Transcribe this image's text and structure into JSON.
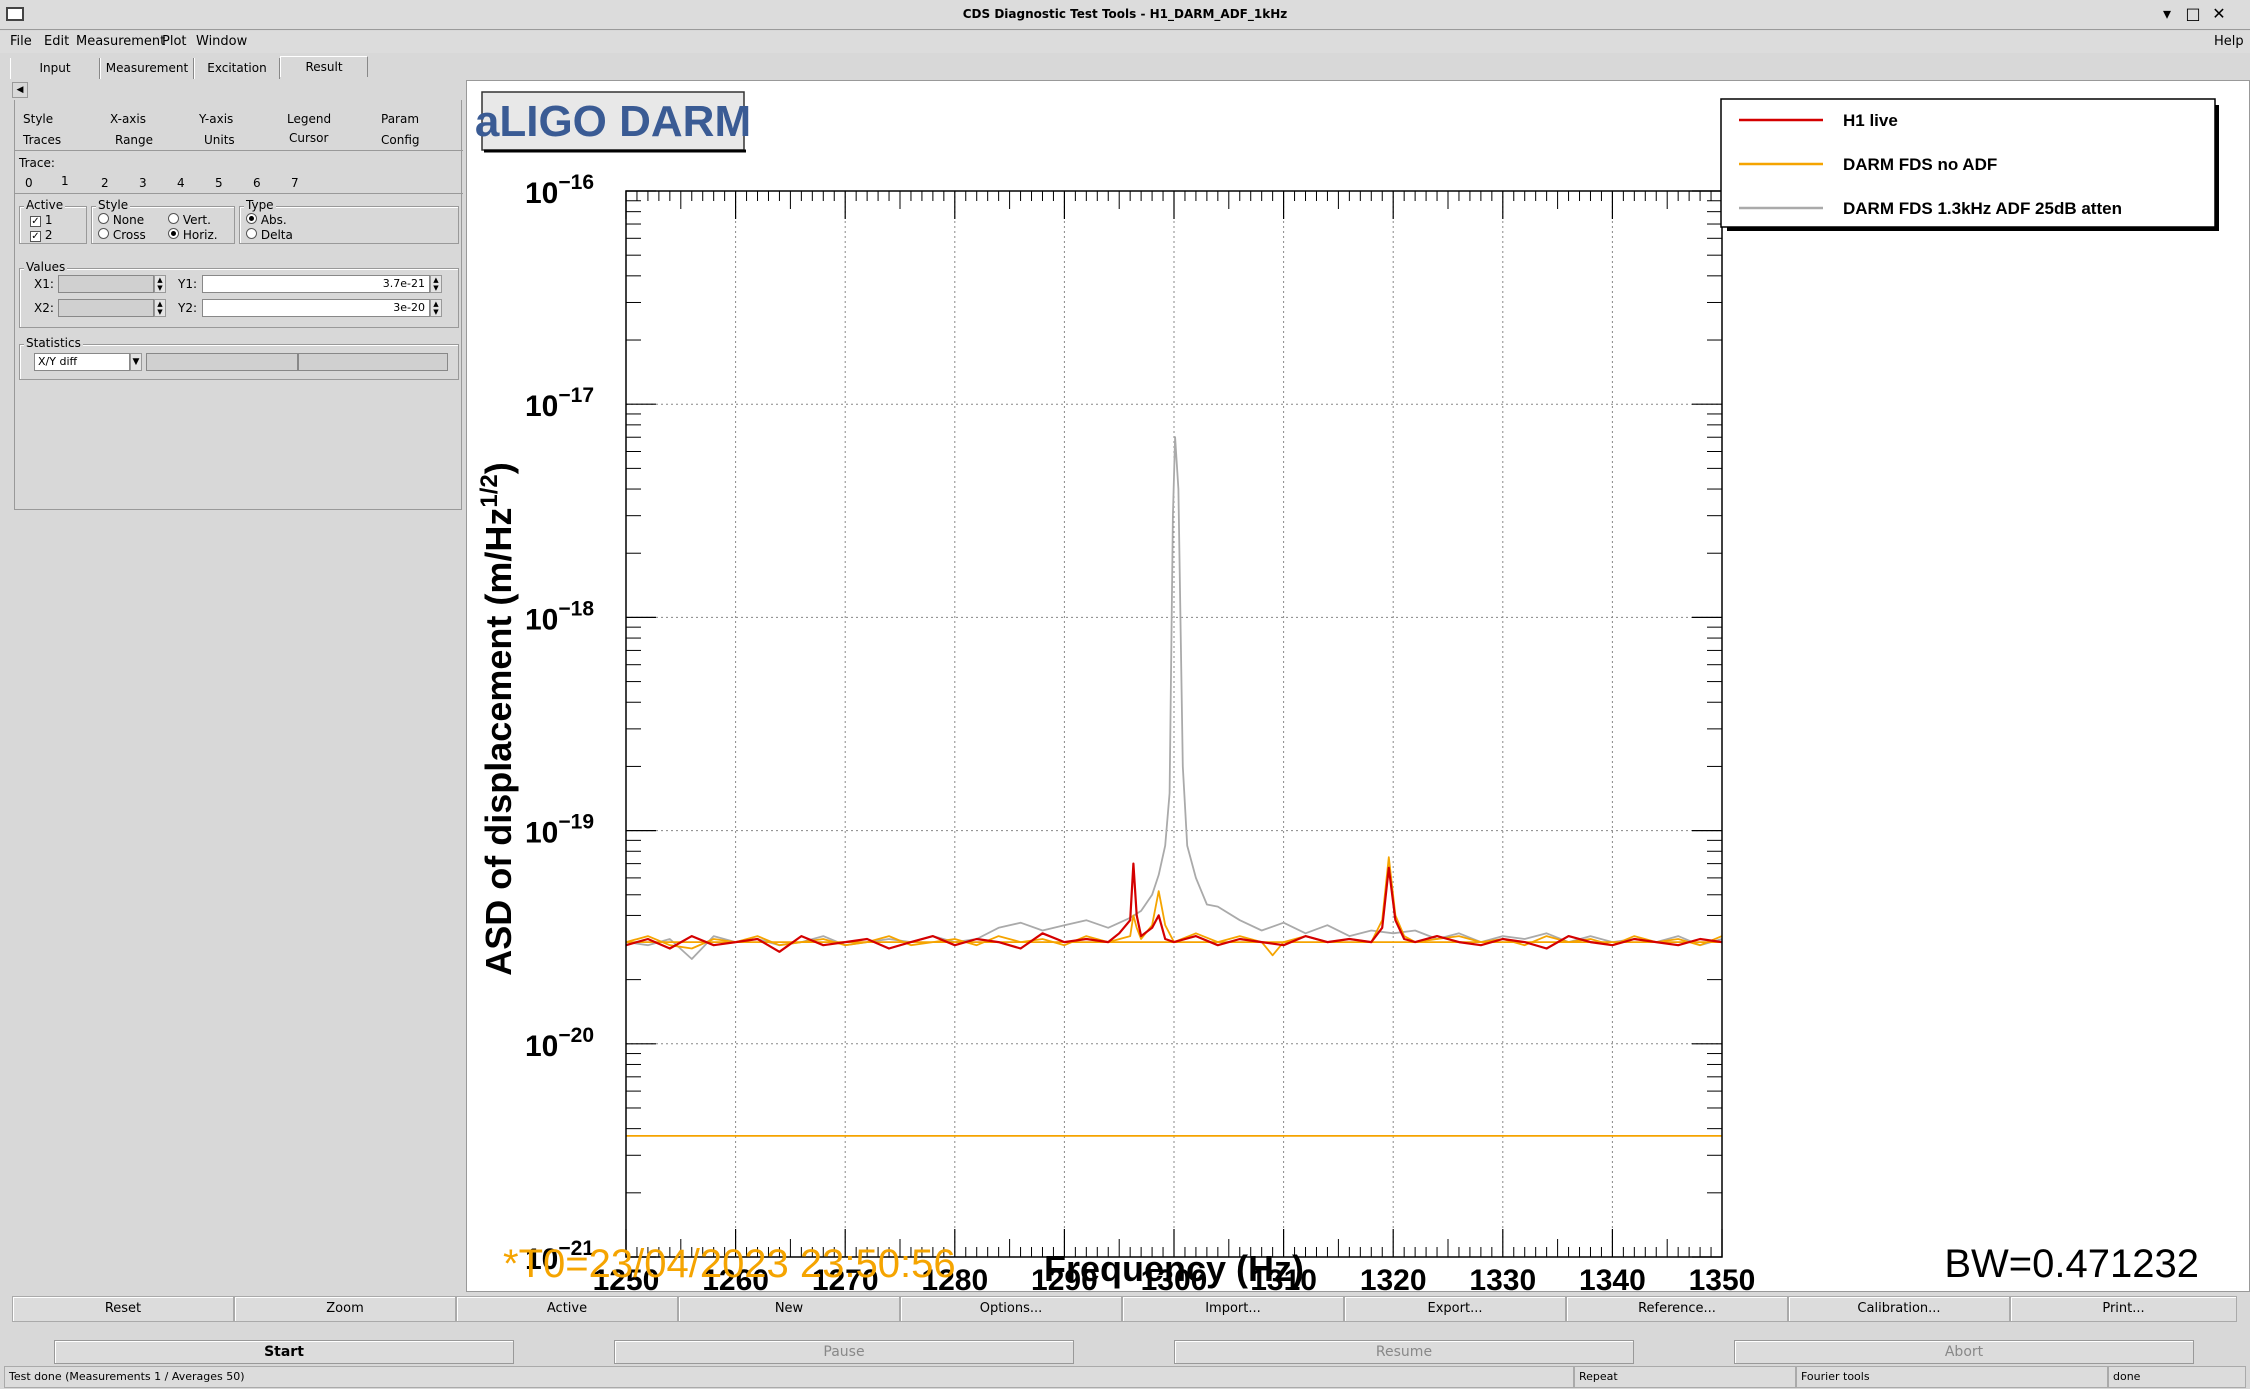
{
  "window": {
    "title": "CDS Diagnostic Test Tools - H1_DARM_ADF_1kHz",
    "min": "▾",
    "restore": "□",
    "close": "✕"
  },
  "menu": {
    "file": "File",
    "edit": "Edit",
    "measurement": "Measurement",
    "plot": "Plot",
    "window": "Window",
    "help": "Help"
  },
  "tabs": [
    "Input",
    "Measurement",
    "Excitation",
    "Result"
  ],
  "subtabs": {
    "row1": [
      "Style",
      "X-axis",
      "Y-axis",
      "Legend",
      "Param"
    ],
    "row2": [
      "Traces",
      "Range",
      "Units",
      "Cursor",
      "Config"
    ]
  },
  "trace": {
    "label": "Trace:",
    "items": [
      "0",
      "1",
      "2",
      "3",
      "4",
      "5",
      "6",
      "7"
    ]
  },
  "active": {
    "label": "Active",
    "items": [
      "1",
      "2"
    ]
  },
  "style": {
    "label": "Style",
    "none": "None",
    "vert": "Vert.",
    "cross": "Cross",
    "horiz": "Horiz."
  },
  "type": {
    "label": "Type",
    "abs": "Abs.",
    "delta": "Delta"
  },
  "values": {
    "label": "Values",
    "x1_label": "X1:",
    "x2_label": "X2:",
    "y1_label": "Y1:",
    "y2_label": "Y2:",
    "y1": "3.7e-21",
    "y2": "3e-20"
  },
  "statistics": {
    "label": "Statistics",
    "selected": "X/Y diff"
  },
  "plot_title": "aLIGO DARM",
  "t0": "*T0=23/04/2023 23:50:56",
  "bw": "BW=0.471232",
  "colors": {
    "red": "#d40000",
    "orange": "#f5a400",
    "gray": "#aaaaaa",
    "title": "#3a5b94"
  },
  "chart_data": {
    "type": "line",
    "xlabel": "Frequency (Hz)",
    "ylabel": "ASD of displacement (m/Hz",
    "ylabel_sup": "1/2",
    "ylabel_end": ")",
    "log_y": true,
    "grid": true,
    "xlim": [
      1250,
      1350
    ],
    "ylim": [
      1e-21,
      1e-16
    ],
    "x_ticks": [
      "1250",
      "1260",
      "1270",
      "1280",
      "1290",
      "1300",
      "1310",
      "1320",
      "1330",
      "1340",
      "1350"
    ],
    "y_ticks": [
      {
        "base": "10",
        "exp": "−21"
      },
      {
        "base": "10",
        "exp": "−20"
      },
      {
        "base": "10",
        "exp": "−19"
      },
      {
        "base": "10",
        "exp": "−18"
      },
      {
        "base": "10",
        "exp": "−17"
      },
      {
        "base": "10",
        "exp": "−16"
      }
    ],
    "legend_position": "top-right",
    "series": [
      {
        "name": "H1 live",
        "color": "#d40000",
        "x": [
          1250,
          1252,
          1254,
          1256,
          1258,
          1260,
          1262,
          1264,
          1266,
          1268,
          1270,
          1272,
          1274,
          1276,
          1278,
          1280,
          1282,
          1284,
          1286,
          1288,
          1290,
          1292,
          1294,
          1295,
          1296,
          1296.3,
          1296.6,
          1297,
          1298,
          1298.6,
          1299.2,
          1300,
          1302,
          1304,
          1306,
          1308,
          1310,
          1312,
          1314,
          1316,
          1318,
          1319,
          1319.6,
          1320.2,
          1321,
          1322,
          1324,
          1326,
          1328,
          1330,
          1332,
          1334,
          1336,
          1338,
          1340,
          1342,
          1344,
          1346,
          1348,
          1350
        ],
        "y": [
          2.9e-20,
          3.1e-20,
          2.8e-20,
          3.2e-20,
          2.9e-20,
          3e-20,
          3.1e-20,
          2.7e-20,
          3.2e-20,
          2.9e-20,
          3e-20,
          3.1e-20,
          2.8e-20,
          3e-20,
          3.2e-20,
          2.9e-20,
          3.1e-20,
          3e-20,
          2.8e-20,
          3.3e-20,
          3e-20,
          3.1e-20,
          3e-20,
          3.3e-20,
          3.8e-20,
          7e-20,
          4e-20,
          3.2e-20,
          3.5e-20,
          4e-20,
          3.1e-20,
          3e-20,
          3.2e-20,
          2.9e-20,
          3.1e-20,
          3e-20,
          2.9e-20,
          3.2e-20,
          3e-20,
          3.1e-20,
          3e-20,
          3.5e-20,
          6.7e-20,
          3.8e-20,
          3.1e-20,
          3e-20,
          3.2e-20,
          3e-20,
          2.9e-20,
          3.1e-20,
          3e-20,
          2.8e-20,
          3.2e-20,
          3e-20,
          2.9e-20,
          3.1e-20,
          3e-20,
          2.9e-20,
          3.1e-20,
          3e-20
        ]
      },
      {
        "name": "DARM FDS no ADF",
        "color": "#f5a400",
        "x": [
          1250,
          1252,
          1254,
          1256,
          1258,
          1260,
          1262,
          1264,
          1266,
          1268,
          1270,
          1272,
          1274,
          1276,
          1278,
          1280,
          1282,
          1284,
          1286,
          1288,
          1290,
          1292,
          1294,
          1296,
          1296.3,
          1296.6,
          1297,
          1298,
          1298.6,
          1299.2,
          1300,
          1302,
          1304,
          1306,
          1308,
          1309,
          1310,
          1312,
          1314,
          1316,
          1318,
          1319,
          1319.6,
          1320.2,
          1321,
          1322,
          1324,
          1326,
          1328,
          1330,
          1332,
          1334,
          1336,
          1338,
          1340,
          1342,
          1344,
          1346,
          1348,
          1350
        ],
        "y": [
          3e-20,
          3.2e-20,
          2.9e-20,
          2.8e-20,
          3.1e-20,
          3e-20,
          3.2e-20,
          2.9e-20,
          3e-20,
          3.1e-20,
          2.9e-20,
          3e-20,
          3.2e-20,
          2.9e-20,
          3e-20,
          3.1e-20,
          2.9e-20,
          3.2e-20,
          3e-20,
          3.1e-20,
          2.9e-20,
          3.2e-20,
          3e-20,
          3.2e-20,
          4e-20,
          3.5e-20,
          3.1e-20,
          3.6e-20,
          5.2e-20,
          3.6e-20,
          3e-20,
          3.3e-20,
          3e-20,
          3.2e-20,
          3e-20,
          2.6e-20,
          3e-20,
          3.2e-20,
          3e-20,
          3.1e-20,
          3e-20,
          3.8e-20,
          7.5e-20,
          4e-20,
          3.2e-20,
          3e-20,
          3.1e-20,
          3.2e-20,
          3e-20,
          3.1e-20,
          2.9e-20,
          3.2e-20,
          3e-20,
          3.1e-20,
          2.9e-20,
          3.2e-20,
          3e-20,
          3.1e-20,
          2.9e-20,
          3.2e-20
        ]
      },
      {
        "name": "DARM FDS 1.3kHz ADF 25dB atten",
        "color": "#aaaaaa",
        "x": [
          1250,
          1252,
          1254,
          1256,
          1258,
          1260,
          1262,
          1264,
          1266,
          1268,
          1270,
          1272,
          1274,
          1276,
          1278,
          1280,
          1282,
          1284,
          1286,
          1288,
          1290,
          1292,
          1294,
          1296,
          1297,
          1298,
          1298.6,
          1299.2,
          1299.6,
          1299.9,
          1300.1,
          1300.4,
          1300.8,
          1301.2,
          1302,
          1303,
          1304,
          1306,
          1308,
          1310,
          1312,
          1314,
          1316,
          1318,
          1320,
          1322,
          1324,
          1326,
          1328,
          1330,
          1332,
          1334,
          1336,
          1338,
          1340,
          1342,
          1344,
          1346,
          1348,
          1350
        ],
        "y": [
          3e-20,
          2.9e-20,
          3.1e-20,
          2.5e-20,
          3.2e-20,
          3e-20,
          3.1e-20,
          2.9e-20,
          3e-20,
          3.2e-20,
          2.9e-20,
          3e-20,
          3.1e-20,
          3e-20,
          3.2e-20,
          3e-20,
          3.1e-20,
          3.5e-20,
          3.7e-20,
          3.4e-20,
          3.6e-20,
          3.8e-20,
          3.5e-20,
          3.9e-20,
          4.2e-20,
          5e-20,
          6.2e-20,
          8.5e-20,
          1.5e-19,
          3e-18,
          7e-18,
          4e-18,
          2e-19,
          8.5e-20,
          6e-20,
          4.5e-20,
          4.4e-20,
          3.8e-20,
          3.4e-20,
          3.7e-20,
          3.3e-20,
          3.6e-20,
          3.2e-20,
          3.4e-20,
          3.3e-20,
          3.4e-20,
          3.1e-20,
          3.3e-20,
          3e-20,
          3.2e-20,
          3.1e-20,
          3.3e-20,
          3e-20,
          3.2e-20,
          3e-20,
          3.1e-20,
          3e-20,
          3.2e-20,
          2.9e-20,
          3.1e-20
        ]
      },
      {
        "name": "",
        "color": "#f5a400",
        "x": [
          1250,
          1350
        ],
        "y": [
          3e-20,
          3e-20
        ]
      },
      {
        "name": "",
        "color": "#f5a400",
        "x": [
          1250,
          1350
        ],
        "y": [
          3.7e-21,
          3.7e-21
        ]
      }
    ]
  },
  "buttons1": [
    "Reset",
    "Zoom",
    "Active",
    "New",
    "Options...",
    "Import...",
    "Export...",
    "Reference...",
    "Calibration...",
    "Print..."
  ],
  "buttons2": [
    "Start",
    "Pause",
    "Resume",
    "Abort"
  ],
  "status": {
    "msg": "Test done (Measurements 1 / Averages 50)",
    "repeat": "Repeat",
    "fourier": "Fourier tools",
    "done": "done"
  }
}
